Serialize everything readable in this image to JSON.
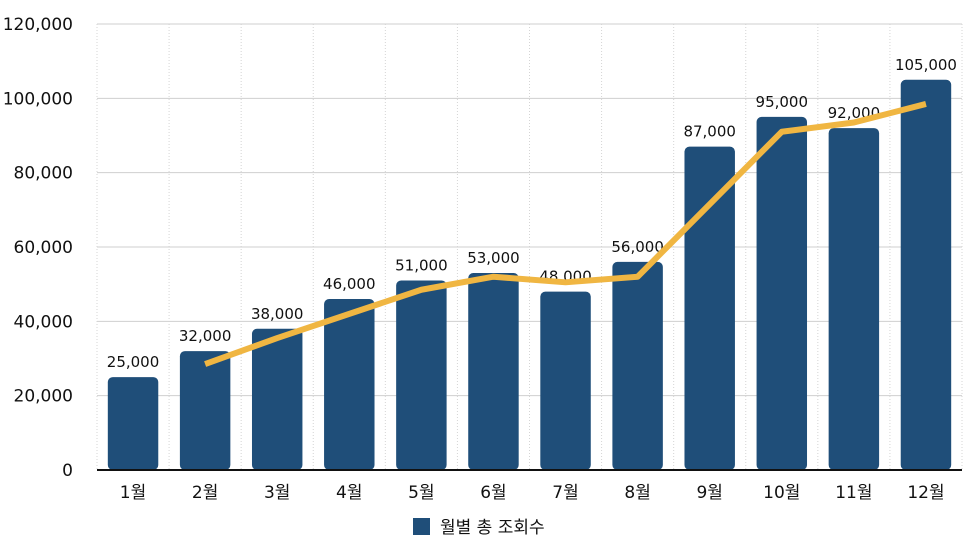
{
  "chart_data": {
    "type": "bar",
    "categories": [
      "1월",
      "2월",
      "3월",
      "4월",
      "5월",
      "6월",
      "7월",
      "8월",
      "9월",
      "10월",
      "11월",
      "12월"
    ],
    "series": [
      {
        "name": "월별 총 조회수",
        "values": [
          25000,
          32000,
          38000,
          46000,
          51000,
          53000,
          48000,
          56000,
          87000,
          95000,
          92000,
          105000
        ],
        "data_labels": [
          "25,000",
          "32,000",
          "38,000",
          "46,000",
          "51,000",
          "53,000",
          "48,000",
          "56,000",
          "87,000",
          "95,000",
          "92,000",
          "105,000"
        ],
        "color": "#1f4e79"
      }
    ],
    "trendline": {
      "color": "#f0b642",
      "start_index": 1,
      "values": [
        28500,
        35500,
        42000,
        48500,
        52000,
        50500,
        52000,
        71500,
        91000,
        93500,
        98500
      ]
    },
    "ylim": [
      0,
      120000
    ],
    "yticks": [
      0,
      20000,
      40000,
      60000,
      80000,
      100000,
      120000
    ],
    "ytick_labels": [
      "0",
      "20,000",
      "40,000",
      "60,000",
      "80,000",
      "100,000",
      "120,000"
    ],
    "grid": true,
    "legend_position": "bottom-center",
    "title": "",
    "xlabel": "",
    "ylabel": ""
  }
}
